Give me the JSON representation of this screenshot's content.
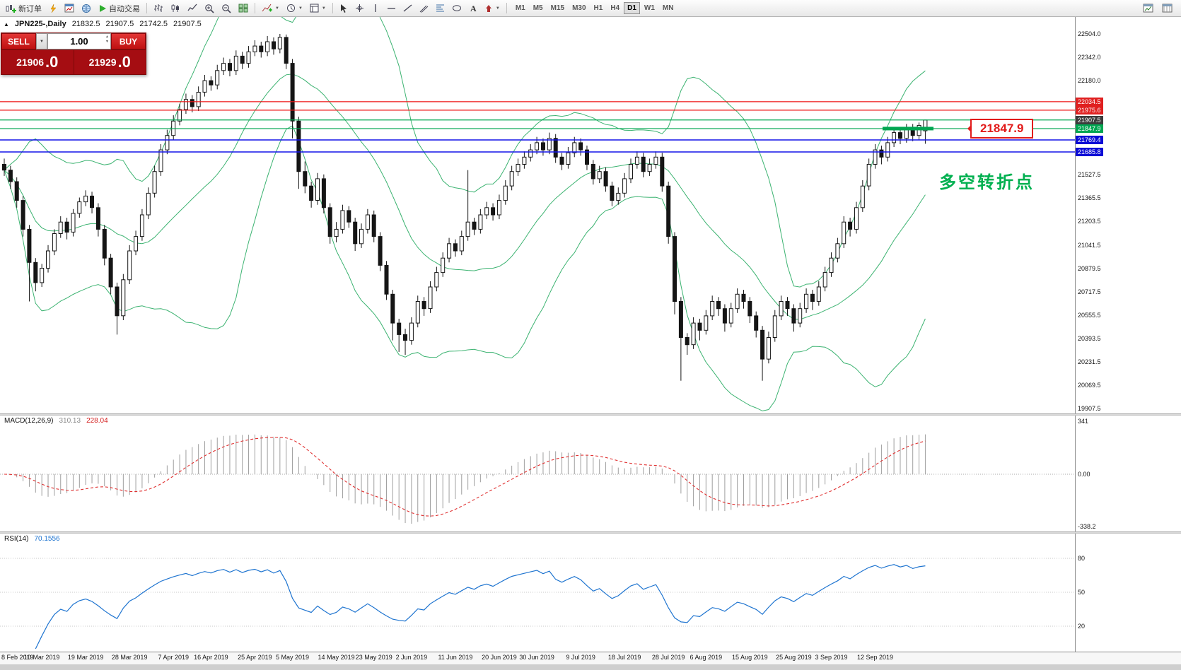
{
  "toolbar": {
    "new_order_label": "新订单",
    "auto_trading_label": "自动交易",
    "timeframes": [
      "M1",
      "M5",
      "M15",
      "M30",
      "H1",
      "H4",
      "D1",
      "W1",
      "MN"
    ],
    "active_timeframe": "D1"
  },
  "chart_header": {
    "symbol_period": "JPN225-,Daily",
    "open": "21832.5",
    "high": "21907.5",
    "low": "21742.5",
    "close": "21907.5"
  },
  "trade_panel": {
    "sell_label": "SELL",
    "buy_label": "BUY",
    "volume": "1.00",
    "sell_price": "21906",
    "sell_price_frac": ".0",
    "buy_price": "21929",
    "buy_price_frac": ".0"
  },
  "annotations": {
    "price_callout": "21847.9",
    "turning_point_text": "多空转折点",
    "callout_color": "#e21b1b",
    "note_color": "#00b050"
  },
  "indicators": {
    "macd_label": "MACD(12,26,9)",
    "macd_main": "310.13",
    "macd_signal": "228.04",
    "macd_axis": {
      "max": "341",
      "zero": "0.00",
      "min": "-338.2"
    },
    "rsi_label": "RSI(14)",
    "rsi_value": "70.1556"
  },
  "chart_data": {
    "type": "candlestick",
    "symbol": "JPN225-",
    "timeframe": "Daily",
    "price_axis_ticks": [
      22504.0,
      22342.0,
      22180.0,
      21527.5,
      21365.5,
      21203.5,
      21041.5,
      20879.5,
      20717.5,
      20555.5,
      20393.5,
      20231.5,
      20069.5,
      19907.5
    ],
    "horizontal_lines": [
      {
        "price": 22034.5,
        "color": "#ee1515",
        "width": 1.3,
        "axis_bg": "#e02020"
      },
      {
        "price": 21975.6,
        "color": "#ee1515",
        "width": 1.3,
        "axis_bg": "#e02020"
      },
      {
        "price": 21907.5,
        "color": "#00a651",
        "width": 1.2,
        "axis_bg": "#3c3c3c"
      },
      {
        "price": 21847.9,
        "color": "#00a651",
        "width": 1.2,
        "axis_bg": "#00a651",
        "seg": [
          1248,
          1320
        ]
      },
      {
        "price": 21769.4,
        "color": "#1414e8",
        "width": 1.5,
        "axis_bg": "#0b0bd6"
      },
      {
        "price": 21685.8,
        "color": "#1414e8",
        "width": 1.5,
        "axis_bg": "#0b0bd6"
      }
    ],
    "bollinger": {
      "period": 20,
      "deviation": 2,
      "color": "#3cb371"
    },
    "macd": {
      "fast": 12,
      "slow": 26,
      "signal": 9,
      "histogram_color": "#9e9e9e",
      "signal_color": "#e03131"
    },
    "rsi": {
      "period": 14,
      "levels": [
        80,
        50,
        20
      ],
      "color": "#1e74d0"
    },
    "date_labels": [
      {
        "t": "8 Feb 2019",
        "i": 0
      },
      {
        "t": "10 Mar 2019",
        "i": 6
      },
      {
        "t": "19 Mar 2019",
        "i": 13
      },
      {
        "t": "28 Mar 2019",
        "i": 20
      },
      {
        "t": "7 Apr 2019",
        "i": 27
      },
      {
        "t": "16 Apr 2019",
        "i": 33
      },
      {
        "t": "25 Apr 2019",
        "i": 40
      },
      {
        "t": "5 May 2019",
        "i": 46
      },
      {
        "t": "14 May 2019",
        "i": 53
      },
      {
        "t": "23 May 2019",
        "i": 59
      },
      {
        "t": "2 Jun 2019",
        "i": 65
      },
      {
        "t": "11 Jun 2019",
        "i": 72
      },
      {
        "t": "20 Jun 2019",
        "i": 79
      },
      {
        "t": "30 Jun 2019",
        "i": 85
      },
      {
        "t": "9 Jul 2019",
        "i": 92
      },
      {
        "t": "18 Jul 2019",
        "i": 99
      },
      {
        "t": "28 Jul 2019",
        "i": 106
      },
      {
        "t": "6 Aug 2019",
        "i": 112
      },
      {
        "t": "15 Aug 2019",
        "i": 119
      },
      {
        "t": "25 Aug 2019",
        "i": 126
      },
      {
        "t": "3 Sep 2019",
        "i": 132
      },
      {
        "t": "12 Sep 2019",
        "i": 139
      }
    ],
    "candles": [
      [
        21600,
        21640,
        21520,
        21560
      ],
      [
        21560,
        21590,
        21430,
        21480
      ],
      [
        21480,
        21510,
        21300,
        21350
      ],
      [
        21350,
        21380,
        21100,
        21150
      ],
      [
        21150,
        21180,
        20650,
        20920
      ],
      [
        20920,
        20950,
        20720,
        20780
      ],
      [
        20780,
        20910,
        20750,
        20880
      ],
      [
        20880,
        21040,
        20850,
        21000
      ],
      [
        21000,
        21150,
        20970,
        21120
      ],
      [
        21120,
        21240,
        21090,
        21200
      ],
      [
        21200,
        21230,
        21080,
        21130
      ],
      [
        21130,
        21290,
        21100,
        21260
      ],
      [
        21260,
        21370,
        21230,
        21340
      ],
      [
        21340,
        21420,
        21310,
        21380
      ],
      [
        21380,
        21410,
        21260,
        21300
      ],
      [
        21300,
        21330,
        21100,
        21150
      ],
      [
        21150,
        21180,
        20900,
        20950
      ],
      [
        20950,
        20980,
        20700,
        20750
      ],
      [
        20750,
        20780,
        20420,
        20550
      ],
      [
        20550,
        20840,
        20520,
        20800
      ],
      [
        20800,
        21040,
        20770,
        21000
      ],
      [
        21000,
        21140,
        20970,
        21100
      ],
      [
        21100,
        21290,
        21070,
        21250
      ],
      [
        21250,
        21440,
        21220,
        21400
      ],
      [
        21400,
        21590,
        21370,
        21550
      ],
      [
        21550,
        21740,
        21520,
        21700
      ],
      [
        21700,
        21840,
        21670,
        21800
      ],
      [
        21800,
        21940,
        21770,
        21900
      ],
      [
        21900,
        22020,
        21870,
        21980
      ],
      [
        21980,
        22090,
        21950,
        22050
      ],
      [
        22050,
        22080,
        21960,
        22000
      ],
      [
        22000,
        22140,
        21970,
        22100
      ],
      [
        22100,
        22220,
        22070,
        22180
      ],
      [
        22180,
        22210,
        22110,
        22150
      ],
      [
        22150,
        22290,
        22120,
        22250
      ],
      [
        22250,
        22340,
        22220,
        22300
      ],
      [
        22300,
        22330,
        22210,
        22250
      ],
      [
        22250,
        22390,
        22220,
        22350
      ],
      [
        22350,
        22380,
        22260,
        22300
      ],
      [
        22300,
        22420,
        22270,
        22380
      ],
      [
        22380,
        22460,
        22350,
        22420
      ],
      [
        22420,
        22450,
        22340,
        22380
      ],
      [
        22380,
        22490,
        22350,
        22450
      ],
      [
        22450,
        22480,
        22360,
        22400
      ],
      [
        22400,
        22504,
        22370,
        22480
      ],
      [
        22480,
        22500,
        22260,
        22300
      ],
      [
        22300,
        22330,
        21780,
        21900
      ],
      [
        21900,
        21930,
        21430,
        21550
      ],
      [
        21550,
        21620,
        21400,
        21450
      ],
      [
        21450,
        21480,
        21300,
        21350
      ],
      [
        21350,
        21540,
        21320,
        21500
      ],
      [
        21500,
        21530,
        21260,
        21300
      ],
      [
        21300,
        21330,
        21050,
        21100
      ],
      [
        21100,
        21200,
        21060,
        21150
      ],
      [
        21150,
        21320,
        21120,
        21280
      ],
      [
        21280,
        21310,
        21160,
        21200
      ],
      [
        21200,
        21230,
        21000,
        21050
      ],
      [
        21050,
        21190,
        21020,
        21150
      ],
      [
        21150,
        21290,
        21120,
        21250
      ],
      [
        21250,
        21280,
        21060,
        21100
      ],
      [
        21100,
        21130,
        20860,
        20900
      ],
      [
        20900,
        20930,
        20660,
        20700
      ],
      [
        20700,
        20730,
        20380,
        20500
      ],
      [
        20500,
        20530,
        20300,
        20420
      ],
      [
        20420,
        20460,
        20280,
        20380
      ],
      [
        20380,
        20540,
        20350,
        20500
      ],
      [
        20500,
        20690,
        20470,
        20650
      ],
      [
        20650,
        20680,
        20550,
        20600
      ],
      [
        20600,
        20790,
        20570,
        20750
      ],
      [
        20750,
        20890,
        20720,
        20850
      ],
      [
        20850,
        20990,
        20820,
        20950
      ],
      [
        20950,
        21090,
        20920,
        21050
      ],
      [
        21050,
        21080,
        20960,
        21000
      ],
      [
        21000,
        21140,
        20970,
        21100
      ],
      [
        21100,
        21560,
        21070,
        21200
      ],
      [
        21200,
        21230,
        21110,
        21150
      ],
      [
        21150,
        21290,
        21120,
        21250
      ],
      [
        21250,
        21340,
        21220,
        21300
      ],
      [
        21300,
        21330,
        21210,
        21250
      ],
      [
        21250,
        21390,
        21220,
        21350
      ],
      [
        21350,
        21490,
        21320,
        21450
      ],
      [
        21450,
        21590,
        21420,
        21550
      ],
      [
        21550,
        21640,
        21520,
        21600
      ],
      [
        21600,
        21690,
        21570,
        21650
      ],
      [
        21650,
        21740,
        21620,
        21700
      ],
      [
        21700,
        21790,
        21670,
        21750
      ],
      [
        21750,
        21780,
        21660,
        21700
      ],
      [
        21700,
        21820,
        21670,
        21780
      ],
      [
        21780,
        21810,
        21610,
        21650
      ],
      [
        21650,
        21680,
        21560,
        21600
      ],
      [
        21600,
        21720,
        21570,
        21680
      ],
      [
        21680,
        21790,
        21650,
        21750
      ],
      [
        21750,
        21780,
        21660,
        21700
      ],
      [
        21700,
        21730,
        21560,
        21600
      ],
      [
        21600,
        21630,
        21460,
        21500
      ],
      [
        21500,
        21590,
        21470,
        21550
      ],
      [
        21550,
        21580,
        21410,
        21450
      ],
      [
        21450,
        21480,
        21310,
        21350
      ],
      [
        21350,
        21440,
        21320,
        21400
      ],
      [
        21400,
        21540,
        21370,
        21500
      ],
      [
        21500,
        21640,
        21470,
        21600
      ],
      [
        21600,
        21690,
        21570,
        21650
      ],
      [
        21650,
        21680,
        21510,
        21550
      ],
      [
        21550,
        21640,
        21520,
        21600
      ],
      [
        21600,
        21690,
        21570,
        21650
      ],
      [
        21650,
        21680,
        21410,
        21450
      ],
      [
        21450,
        21480,
        21050,
        21100
      ],
      [
        21100,
        21130,
        20560,
        20650
      ],
      [
        20650,
        20680,
        20100,
        20400
      ],
      [
        20400,
        20430,
        20280,
        20350
      ],
      [
        20350,
        20540,
        20320,
        20500
      ],
      [
        20500,
        20530,
        20380,
        20450
      ],
      [
        20450,
        20590,
        20420,
        20550
      ],
      [
        20550,
        20690,
        20520,
        20650
      ],
      [
        20650,
        20680,
        20550,
        20600
      ],
      [
        20600,
        20630,
        20440,
        20500
      ],
      [
        20500,
        20640,
        20470,
        20600
      ],
      [
        20600,
        20740,
        20570,
        20700
      ],
      [
        20700,
        20730,
        20600,
        20650
      ],
      [
        20650,
        20680,
        20500,
        20550
      ],
      [
        20550,
        20580,
        20400,
        20450
      ],
      [
        20450,
        20480,
        20100,
        20250
      ],
      [
        20250,
        20440,
        20220,
        20400
      ],
      [
        20400,
        20590,
        20370,
        20550
      ],
      [
        20550,
        20690,
        20520,
        20650
      ],
      [
        20650,
        20680,
        20550,
        20600
      ],
      [
        20600,
        20630,
        20440,
        20500
      ],
      [
        20500,
        20640,
        20470,
        20600
      ],
      [
        20600,
        20740,
        20570,
        20700
      ],
      [
        20700,
        20730,
        20590,
        20650
      ],
      [
        20650,
        20790,
        20620,
        20750
      ],
      [
        20750,
        20890,
        20720,
        20850
      ],
      [
        20850,
        20990,
        20820,
        20950
      ],
      [
        20950,
        21090,
        20920,
        21050
      ],
      [
        21050,
        21240,
        21020,
        21200
      ],
      [
        21200,
        21230,
        21100,
        21150
      ],
      [
        21150,
        21340,
        21120,
        21300
      ],
      [
        21300,
        21490,
        21270,
        21450
      ],
      [
        21450,
        21640,
        21420,
        21600
      ],
      [
        21600,
        21740,
        21570,
        21700
      ],
      [
        21700,
        21730,
        21600,
        21650
      ],
      [
        21650,
        21790,
        21620,
        21750
      ],
      [
        21750,
        21850,
        21720,
        21820
      ],
      [
        21820,
        21850,
        21740,
        21780
      ],
      [
        21780,
        21880,
        21750,
        21850
      ],
      [
        21850,
        21880,
        21760,
        21800
      ],
      [
        21800,
        21890,
        21770,
        21870
      ],
      [
        21832.5,
        21907.5,
        21742.5,
        21907.5
      ]
    ]
  }
}
